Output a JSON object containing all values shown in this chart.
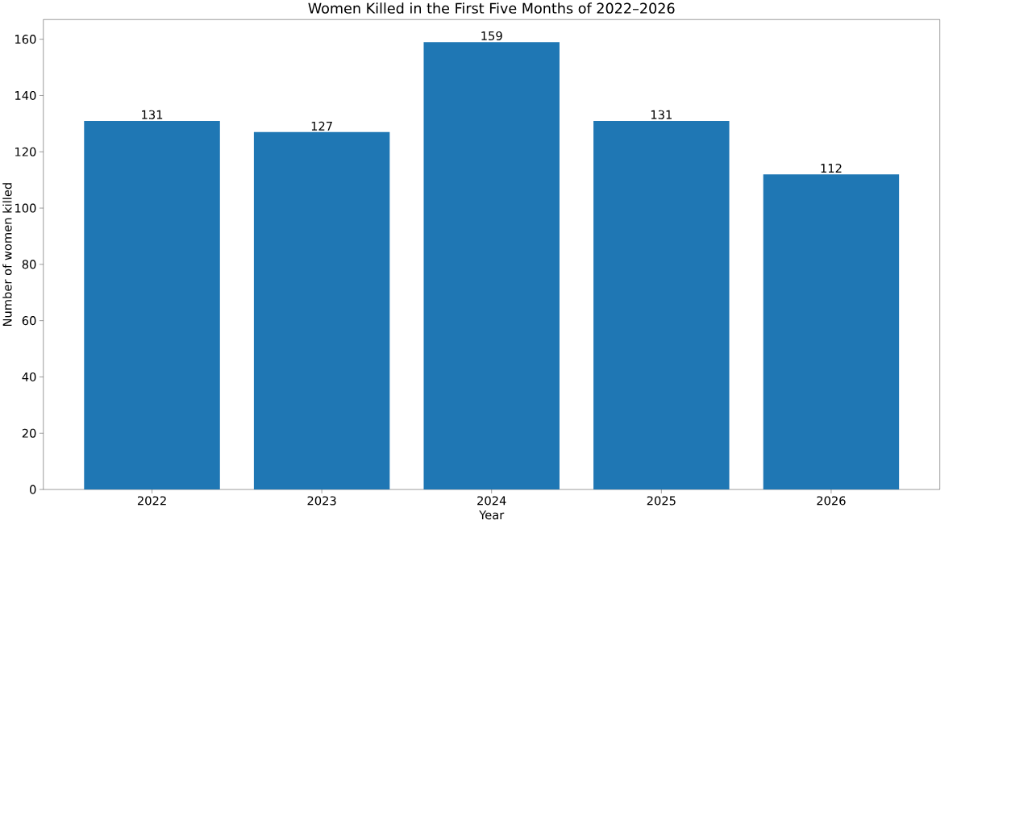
{
  "chart_data": {
    "type": "bar",
    "title": "Women Killed in the First Five Months of 2022–2026",
    "xlabel": "Year",
    "ylabel": "Number of women killed",
    "categories": [
      "2022",
      "2023",
      "2024",
      "2025",
      "2026"
    ],
    "values": [
      131,
      127,
      159,
      131,
      112
    ],
    "color": "#1f77b4",
    "ylim": [
      0,
      167
    ],
    "yticks": [
      0,
      20,
      40,
      60,
      80,
      100,
      120,
      140,
      160
    ],
    "data_labels": true
  }
}
